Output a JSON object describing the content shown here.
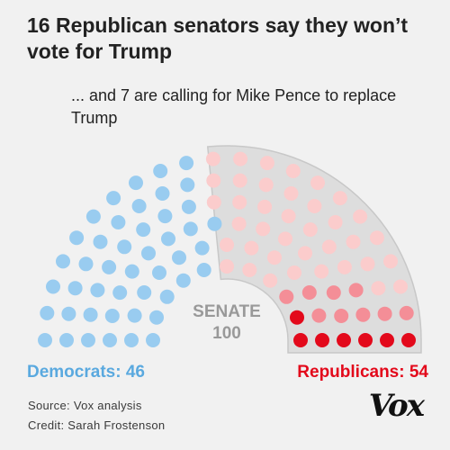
{
  "title": "16 Republican senators say they won’t vote for Trump",
  "subtitle": "... and 7 are calling for Mike Pence to replace Trump",
  "chamber_label": "SENATE",
  "chamber_total": "100",
  "democrats_label": "Democrats: 46",
  "republicans_label": "Republicans: 54",
  "source": "Source: Vox analysis",
  "credit": "Credit: Sarah Frostenson",
  "logo": "Vox",
  "colors": {
    "background": "#f1f1f1",
    "democrat": "#99ccf0",
    "republican": "#fbcccc",
    "wont_vote_for_trump": "#f48e97",
    "calling_for_pence": "#e3091b",
    "highlight_band": "#dddddd"
  },
  "chart_data": {
    "type": "parliament",
    "title": "16 Republican senators say they won’t vote for Trump",
    "subtitle": "... and 7 are calling for Mike Pence to replace Trump",
    "total_seats": 100,
    "series": [
      {
        "name": "Democrats",
        "value": 46
      },
      {
        "name": "Republicans",
        "value": 54
      }
    ],
    "republican_breakdown": [
      {
        "category": "other",
        "value": 38
      },
      {
        "category": "won't vote for Trump",
        "value": 9
      },
      {
        "category": "calling for Mike Pence to replace Trump",
        "value": 7
      }
    ]
  }
}
